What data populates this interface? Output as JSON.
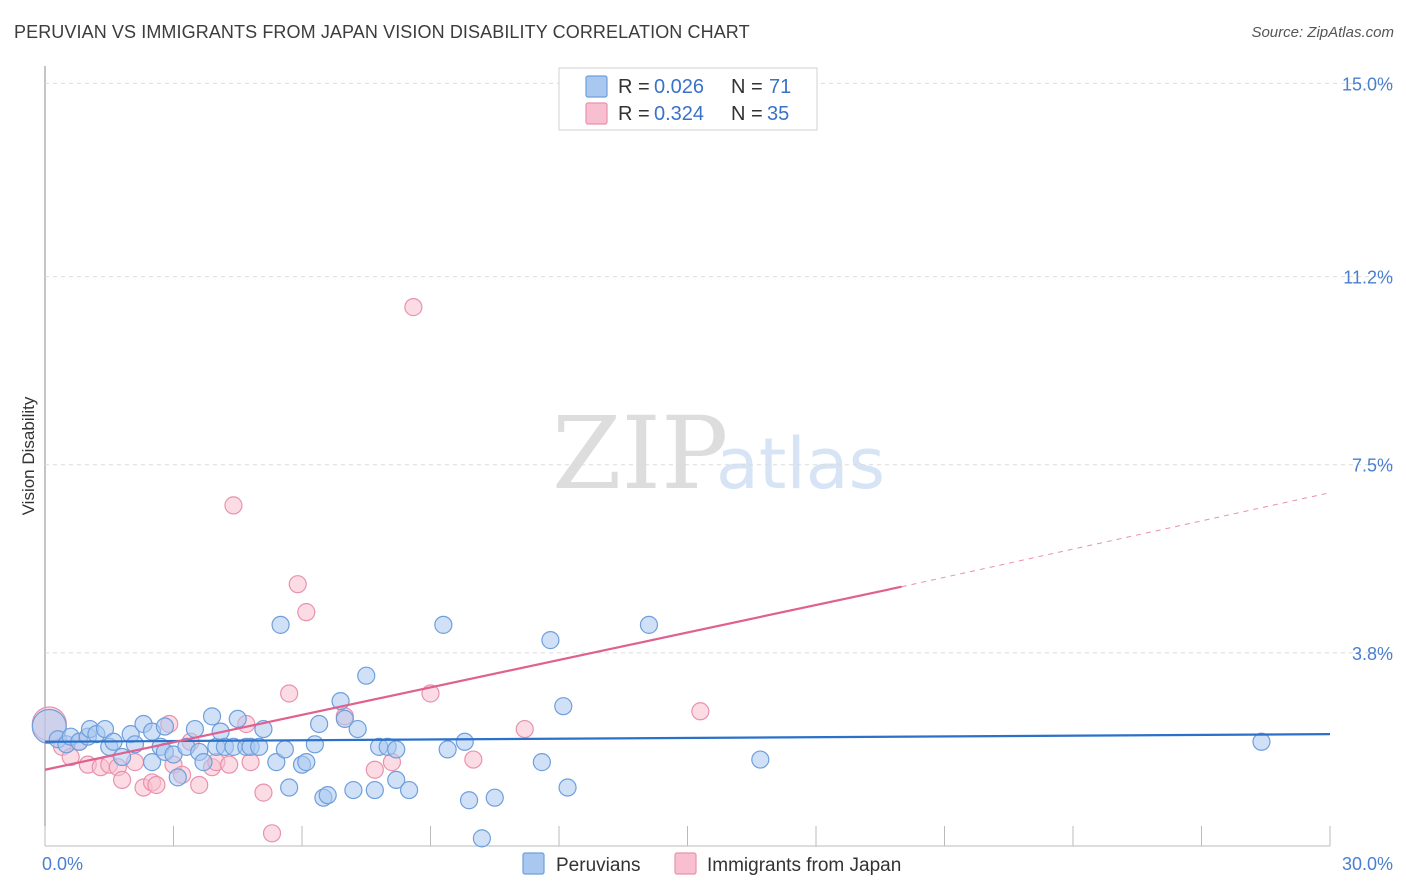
{
  "title": "PERUVIAN VS IMMIGRANTS FROM JAPAN VISION DISABILITY CORRELATION CHART",
  "source": "Source: ZipAtlas.com",
  "watermark": {
    "zip": "ZIP",
    "atlas": "atlas"
  },
  "legend": {
    "rows": [
      {
        "r_label": "R =",
        "r_value": "0.026",
        "n_label": "N =",
        "n_value": "71"
      },
      {
        "r_label": "R =",
        "r_value": "0.324",
        "n_label": "N =",
        "n_value": "35"
      }
    ]
  },
  "bottom_legend": [
    "Peruvians",
    "Immigrants from Japan"
  ],
  "colors": {
    "peruvians_fill": "#a9c8f0",
    "peruvians_stroke": "#6e9fdc",
    "peruvians_line": "#2b70c9",
    "japan_fill": "#f7bfd0",
    "japan_stroke": "#e992ae",
    "japan_line": "#e0608e",
    "tick_text": "#4a7fcf",
    "grid": "#dcdcdc"
  },
  "chart_data": {
    "type": "scatter",
    "title": "PERUVIAN VS IMMIGRANTS FROM JAPAN VISION DISABILITY CORRELATION CHART",
    "xlabel": "",
    "ylabel": "Vision Disability",
    "xlim": [
      0,
      30
    ],
    "ylim": [
      0,
      15.5
    ],
    "x_tick_labels": [
      {
        "value": 0,
        "label": "0.0%"
      },
      {
        "value": 30,
        "label": "30.0%"
      }
    ],
    "y_tick_labels": [
      {
        "value": 3.8,
        "label": "3.8%"
      },
      {
        "value": 7.5,
        "label": "7.5%"
      },
      {
        "value": 11.2,
        "label": "11.2%"
      },
      {
        "value": 15.0,
        "label": "15.0%"
      }
    ],
    "series": [
      {
        "name": "Peruvians",
        "R": 0.026,
        "N": 71,
        "trend": {
          "x": [
            0,
            30
          ],
          "y": [
            2.05,
            2.2
          ]
        },
        "points": [
          {
            "x": 0.1,
            "y": 2.35,
            "big": true
          },
          {
            "x": 0.3,
            "y": 2.1
          },
          {
            "x": 0.5,
            "y": 2.0
          },
          {
            "x": 0.6,
            "y": 2.15
          },
          {
            "x": 0.8,
            "y": 2.05
          },
          {
            "x": 1.0,
            "y": 2.15
          },
          {
            "x": 1.05,
            "y": 2.3
          },
          {
            "x": 1.2,
            "y": 2.2
          },
          {
            "x": 1.4,
            "y": 2.3
          },
          {
            "x": 1.5,
            "y": 1.95
          },
          {
            "x": 1.6,
            "y": 2.05
          },
          {
            "x": 1.8,
            "y": 1.75
          },
          {
            "x": 2.0,
            "y": 2.2
          },
          {
            "x": 2.1,
            "y": 2.0
          },
          {
            "x": 2.3,
            "y": 2.4
          },
          {
            "x": 2.5,
            "y": 2.25
          },
          {
            "x": 2.5,
            "y": 1.65
          },
          {
            "x": 2.7,
            "y": 1.95
          },
          {
            "x": 2.8,
            "y": 1.85
          },
          {
            "x": 2.8,
            "y": 2.35
          },
          {
            "x": 3.0,
            "y": 1.8
          },
          {
            "x": 3.1,
            "y": 1.35
          },
          {
            "x": 3.3,
            "y": 1.95
          },
          {
            "x": 3.5,
            "y": 2.3
          },
          {
            "x": 3.6,
            "y": 1.85
          },
          {
            "x": 3.7,
            "y": 1.65
          },
          {
            "x": 3.9,
            "y": 2.55
          },
          {
            "x": 4.0,
            "y": 1.95
          },
          {
            "x": 4.1,
            "y": 2.25
          },
          {
            "x": 4.2,
            "y": 1.95
          },
          {
            "x": 4.4,
            "y": 1.95
          },
          {
            "x": 4.5,
            "y": 2.5
          },
          {
            "x": 4.7,
            "y": 1.95
          },
          {
            "x": 4.8,
            "y": 1.95
          },
          {
            "x": 5.0,
            "y": 1.95
          },
          {
            "x": 5.1,
            "y": 2.3
          },
          {
            "x": 5.4,
            "y": 1.65
          },
          {
            "x": 5.5,
            "y": 4.35
          },
          {
            "x": 5.6,
            "y": 1.9
          },
          {
            "x": 5.7,
            "y": 1.15
          },
          {
            "x": 6.0,
            "y": 1.6
          },
          {
            "x": 6.1,
            "y": 1.65
          },
          {
            "x": 6.3,
            "y": 2.0
          },
          {
            "x": 6.4,
            "y": 2.4
          },
          {
            "x": 6.5,
            "y": 0.95
          },
          {
            "x": 6.6,
            "y": 1.0
          },
          {
            "x": 6.9,
            "y": 2.85
          },
          {
            "x": 7.0,
            "y": 2.5
          },
          {
            "x": 7.2,
            "y": 1.1
          },
          {
            "x": 7.3,
            "y": 2.3
          },
          {
            "x": 7.5,
            "y": 3.35
          },
          {
            "x": 7.7,
            "y": 1.1
          },
          {
            "x": 7.8,
            "y": 1.95
          },
          {
            "x": 8.0,
            "y": 1.95
          },
          {
            "x": 8.2,
            "y": 1.9
          },
          {
            "x": 8.2,
            "y": 1.3
          },
          {
            "x": 8.5,
            "y": 1.1
          },
          {
            "x": 9.3,
            "y": 4.35
          },
          {
            "x": 9.4,
            "y": 1.9
          },
          {
            "x": 9.8,
            "y": 2.05
          },
          {
            "x": 9.9,
            "y": 0.9
          },
          {
            "x": 10.2,
            "y": 0.15
          },
          {
            "x": 10.5,
            "y": 0.95
          },
          {
            "x": 11.6,
            "y": 1.65
          },
          {
            "x": 11.8,
            "y": 4.05
          },
          {
            "x": 12.1,
            "y": 2.75
          },
          {
            "x": 12.2,
            "y": 1.15
          },
          {
            "x": 14.1,
            "y": 4.35
          },
          {
            "x": 16.7,
            "y": 1.7
          },
          {
            "x": 28.4,
            "y": 2.05
          }
        ]
      },
      {
        "name": "Immigrants from Japan",
        "R": 0.324,
        "N": 35,
        "trend": {
          "x": [
            0,
            20,
            30
          ],
          "y": [
            1.5,
            5.1,
            6.95
          ],
          "solid_until": 20
        },
        "points": [
          {
            "x": 0.1,
            "y": 2.4,
            "big": true
          },
          {
            "x": 0.4,
            "y": 1.95
          },
          {
            "x": 0.6,
            "y": 1.75
          },
          {
            "x": 0.8,
            "y": 2.05
          },
          {
            "x": 1.0,
            "y": 1.6
          },
          {
            "x": 1.3,
            "y": 1.55
          },
          {
            "x": 1.5,
            "y": 1.6
          },
          {
            "x": 1.7,
            "y": 1.55
          },
          {
            "x": 1.8,
            "y": 1.3
          },
          {
            "x": 2.1,
            "y": 1.65
          },
          {
            "x": 2.3,
            "y": 1.15
          },
          {
            "x": 2.5,
            "y": 1.25
          },
          {
            "x": 2.6,
            "y": 1.2
          },
          {
            "x": 2.9,
            "y": 2.4
          },
          {
            "x": 3.0,
            "y": 1.6
          },
          {
            "x": 3.2,
            "y": 1.4
          },
          {
            "x": 3.4,
            "y": 2.05
          },
          {
            "x": 3.6,
            "y": 1.2
          },
          {
            "x": 3.9,
            "y": 1.55
          },
          {
            "x": 4.0,
            "y": 1.65
          },
          {
            "x": 4.3,
            "y": 1.6
          },
          {
            "x": 4.4,
            "y": 6.7
          },
          {
            "x": 4.7,
            "y": 2.4
          },
          {
            "x": 4.8,
            "y": 1.65
          },
          {
            "x": 5.1,
            "y": 1.05
          },
          {
            "x": 5.3,
            "y": 0.25
          },
          {
            "x": 5.7,
            "y": 3.0
          },
          {
            "x": 5.9,
            "y": 5.15
          },
          {
            "x": 6.1,
            "y": 4.6
          },
          {
            "x": 7.0,
            "y": 2.55
          },
          {
            "x": 7.7,
            "y": 1.5
          },
          {
            "x": 8.1,
            "y": 1.65
          },
          {
            "x": 8.6,
            "y": 10.6
          },
          {
            "x": 9.0,
            "y": 3.0
          },
          {
            "x": 10.0,
            "y": 1.7
          },
          {
            "x": 11.2,
            "y": 2.3
          },
          {
            "x": 15.3,
            "y": 2.65
          }
        ]
      }
    ]
  }
}
